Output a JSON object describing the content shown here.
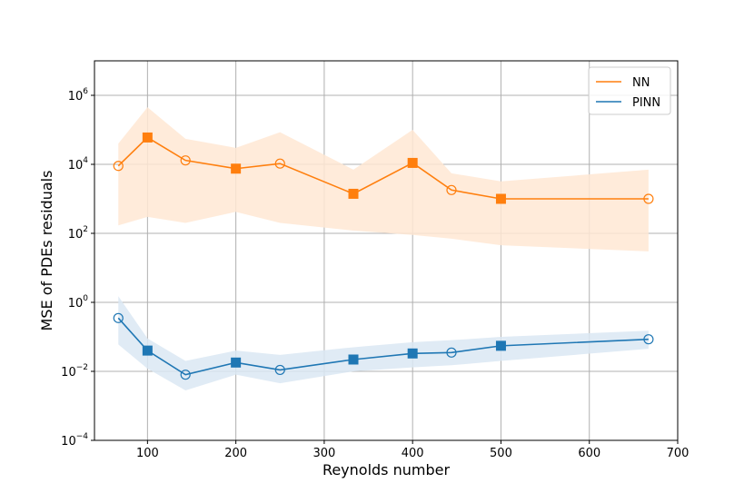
{
  "chart_data": {
    "type": "line",
    "xlabel": "Reynolds number",
    "ylabel": "MSE of PDEs residuals",
    "xlim": [
      40,
      700
    ],
    "ylim_log10": [
      -4,
      7
    ],
    "y_scale": "log",
    "grid": true,
    "legend_position": "top-right",
    "x_ticks": [
      {
        "value": 100,
        "label": "100"
      },
      {
        "value": 200,
        "label": "200"
      },
      {
        "value": 300,
        "label": "300"
      },
      {
        "value": 400,
        "label": "400"
      },
      {
        "value": 500,
        "label": "500"
      },
      {
        "value": 600,
        "label": "600"
      },
      {
        "value": 700,
        "label": "700"
      }
    ],
    "y_ticks": [
      {
        "exp": -4,
        "base": "10",
        "sup": "−4"
      },
      {
        "exp": -2,
        "base": "10",
        "sup": "−2"
      },
      {
        "exp": 0,
        "base": "10",
        "sup": "0"
      },
      {
        "exp": 2,
        "base": "10",
        "sup": "2"
      },
      {
        "exp": 4,
        "base": "10",
        "sup": "4"
      },
      {
        "exp": 6,
        "base": "10",
        "sup": "6"
      }
    ],
    "series": [
      {
        "name": "NN",
        "color": "#ff7f0e",
        "band_color": "#ffe8d3",
        "x": [
          67,
          100,
          143,
          200,
          250,
          333,
          400,
          444,
          500,
          667
        ],
        "y": [
          9000,
          60000,
          13000,
          7500,
          10500,
          1400,
          11000,
          1800,
          1000,
          1000
        ],
        "markers": [
          "circle",
          "square",
          "circle",
          "square",
          "circle",
          "square",
          "square",
          "circle",
          "square",
          "circle"
        ],
        "band_upper": [
          40000,
          450000,
          55000,
          30000,
          85000,
          7000,
          100000,
          5500,
          3200,
          7000
        ],
        "band_lower": [
          170,
          300,
          200,
          420,
          200,
          120,
          90,
          70,
          45,
          30
        ]
      },
      {
        "name": "PINN",
        "color": "#1f77b4",
        "band_color": "#dbe8f3",
        "x": [
          67,
          100,
          143,
          200,
          250,
          333,
          400,
          444,
          500,
          667
        ],
        "y": [
          0.35,
          0.04,
          0.008,
          0.018,
          0.011,
          0.022,
          0.033,
          0.035,
          0.055,
          0.085
        ],
        "markers": [
          "circle",
          "square",
          "circle",
          "square",
          "circle",
          "square",
          "square",
          "circle",
          "square",
          "circle"
        ],
        "band_upper": [
          1.5,
          0.09,
          0.02,
          0.04,
          0.03,
          0.05,
          0.07,
          0.08,
          0.1,
          0.15
        ],
        "band_lower": [
          0.06,
          0.012,
          0.0028,
          0.008,
          0.0045,
          0.01,
          0.013,
          0.015,
          0.02,
          0.045
        ]
      }
    ]
  }
}
